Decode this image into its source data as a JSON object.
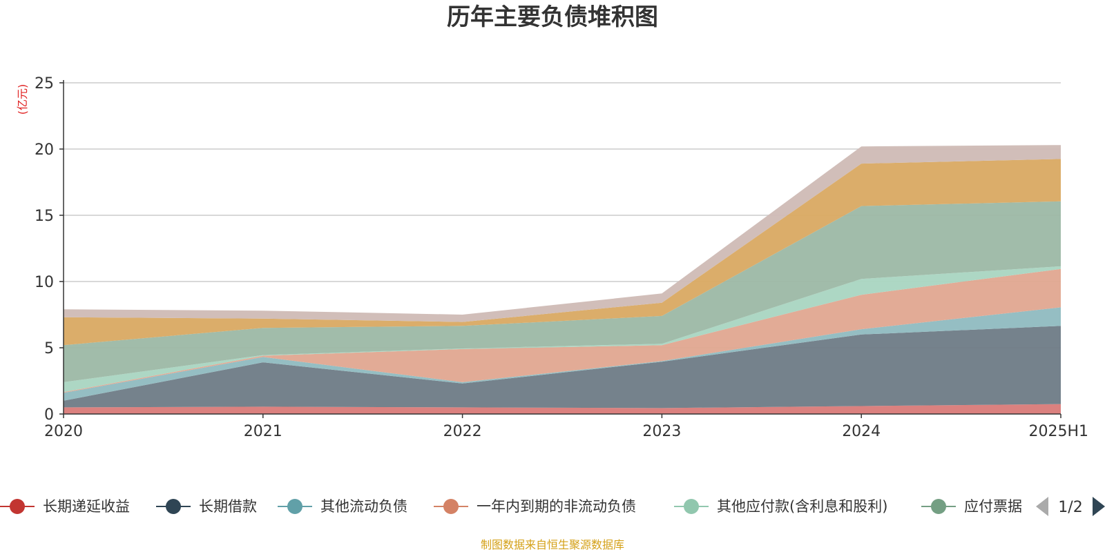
{
  "chart_data": {
    "type": "area",
    "stacked": true,
    "title": "历年主要负债堆积图",
    "ylabel": "(亿元)",
    "xlabel": "",
    "categories": [
      "2020",
      "2021",
      "2022",
      "2023",
      "2024",
      "2025H1"
    ],
    "ylim": [
      0,
      25
    ],
    "yticks": [
      0,
      5,
      10,
      15,
      20,
      25
    ],
    "grid": true,
    "legend_position": "bottom",
    "series": [
      {
        "name": "长期递延收益",
        "legend_color": "#c23531",
        "fill": "#d97a78",
        "values": [
          0.5,
          0.55,
          0.5,
          0.45,
          0.6,
          0.75
        ]
      },
      {
        "name": "长期借款",
        "legend_color": "#2f4554",
        "fill": "#6e7b86",
        "values": [
          0.5,
          3.35,
          1.8,
          3.5,
          5.4,
          5.9
        ]
      },
      {
        "name": "其他流动负债",
        "legend_color": "#61a0a8",
        "fill": "#8fbac0",
        "values": [
          0.6,
          0.4,
          0.1,
          0.05,
          0.4,
          1.4
        ]
      },
      {
        "name": "一年内到期的非流动负债",
        "legend_color": "#d48265",
        "fill": "#e0a690",
        "values": [
          0.05,
          0.1,
          2.5,
          1.2,
          2.6,
          2.9
        ]
      },
      {
        "name": "其他应付款(含利息和股利)",
        "legend_color": "#91c7ae",
        "fill": "#a9d5c1",
        "values": [
          0.75,
          0.05,
          0.05,
          0.1,
          1.2,
          0.2
        ]
      },
      {
        "name": "应付票据",
        "legend_color": "#749f83",
        "fill": "#9cb8a5",
        "values": [
          2.8,
          2.05,
          1.7,
          2.1,
          5.5,
          4.9
        ]
      },
      {
        "name": "",
        "legend_color": "#ca8622",
        "fill": "#d9a962",
        "values": [
          2.1,
          0.7,
          0.3,
          1.0,
          3.2,
          3.2
        ]
      },
      {
        "name": "",
        "legend_color": "#bda29a",
        "fill": "#cfbab5",
        "values": [
          0.6,
          0.6,
          0.55,
          0.7,
          1.3,
          1.05
        ]
      }
    ]
  },
  "legend": {
    "page_text": "1/2"
  },
  "source_text": "制图数据来自恒生聚源数据库"
}
